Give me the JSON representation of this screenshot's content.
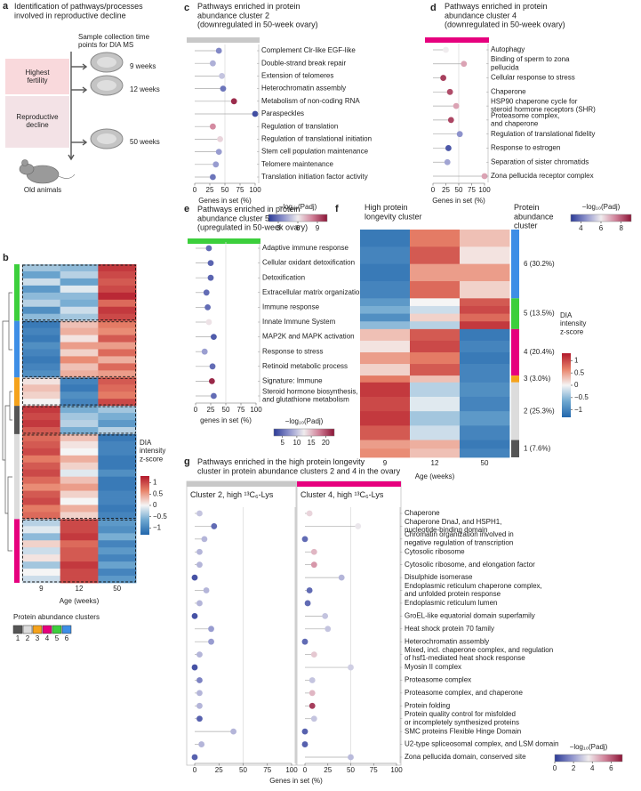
{
  "panel_a": {
    "letter": "a",
    "title": "Identification of pathways/processes\ninvolved in reproductive decline",
    "timepoints_title": "Sample collection time\npoints for DIA MS",
    "phases": [
      "Highest\nfertility",
      "Reproductive\ndecline"
    ],
    "timepoints": [
      "9 weeks",
      "12 weeks",
      "50 weeks"
    ],
    "caption": "Old animals"
  },
  "chart_data": [
    {
      "type": "heatmap",
      "letter": "b",
      "columns": [
        "9",
        "12",
        "50"
      ],
      "xlabel": "Age (weeks)",
      "zlim": [
        -1.3,
        1.3
      ],
      "colorbar": {
        "label": "DIA\nintensity\nz-score",
        "ticks": [
          1,
          0.5,
          0,
          {
            "value": -0.5,
            "label": "−0.5"
          },
          {
            "value": -1,
            "label": "−1"
          }
        ]
      },
      "blocks": [
        {
          "color": "#3ccf3c",
          "rows": [
            [
              -0.4,
              -0.5,
              1.1
            ],
            [
              -0.7,
              -0.3,
              1.0
            ],
            [
              -0.2,
              -0.7,
              0.9
            ],
            [
              -0.8,
              -0.1,
              1.0
            ],
            [
              -0.5,
              -0.5,
              1.2
            ],
            [
              -0.3,
              -0.6,
              0.8
            ],
            [
              -0.9,
              -0.2,
              1.1
            ],
            [
              -0.5,
              -0.4,
              1.0
            ]
          ]
        },
        {
          "color": "#3d8ee6",
          "rows": [
            [
              -1.1,
              0.3,
              0.7
            ],
            [
              -1.0,
              0.4,
              0.6
            ],
            [
              -1.1,
              0.1,
              0.9
            ],
            [
              -0.9,
              0.5,
              0.5
            ],
            [
              -1.0,
              0.2,
              0.8
            ],
            [
              -1.1,
              0.6,
              0.4
            ],
            [
              -1.0,
              0.3,
              0.8
            ],
            [
              -0.9,
              0.4,
              0.5
            ]
          ]
        },
        {
          "color": "#f5a21b",
          "rows": [
            [
              0.1,
              -1.0,
              0.9
            ],
            [
              0.3,
              -1.1,
              0.8
            ],
            [
              0.2,
              -0.9,
              0.7
            ],
            [
              0.0,
              -1.0,
              1.0
            ]
          ]
        },
        {
          "color": "#555555",
          "rows": [
            [
              1.1,
              -0.6,
              -0.4
            ],
            [
              1.0,
              -0.4,
              -0.6
            ],
            [
              1.1,
              -0.3,
              -0.8
            ],
            [
              0.9,
              -0.6,
              -0.3
            ]
          ]
        },
        {
          "color": "#dcdcdc",
          "rows": [
            [
              0.8,
              0.3,
              -1.1
            ],
            [
              0.9,
              0.1,
              -1.0
            ],
            [
              1.0,
              0.0,
              -1.0
            ],
            [
              0.7,
              0.4,
              -1.1
            ],
            [
              0.9,
              0.2,
              -1.1
            ],
            [
              1.0,
              -0.1,
              -0.9
            ],
            [
              0.8,
              0.3,
              -1.1
            ],
            [
              0.6,
              0.5,
              -1.1
            ],
            [
              0.9,
              0.2,
              -1.0
            ],
            [
              1.0,
              0.0,
              -1.0
            ],
            [
              0.7,
              0.4,
              -1.1
            ],
            [
              0.8,
              0.2,
              -1.0
            ]
          ]
        },
        {
          "color": "#e6007e",
          "rows": [
            [
              -0.3,
              1.0,
              -0.8
            ],
            [
              -0.1,
              1.0,
              -0.9
            ],
            [
              -0.5,
              1.1,
              -0.6
            ],
            [
              0.2,
              0.8,
              -1.0
            ],
            [
              -0.2,
              0.9,
              -0.8
            ],
            [
              0.1,
              0.9,
              -1.0
            ],
            [
              -0.4,
              1.1,
              -0.7
            ],
            [
              0.0,
              1.0,
              -1.0
            ],
            [
              -0.2,
              1.0,
              -0.8
            ]
          ]
        }
      ],
      "legend_title": "Protein abundance clusters",
      "legend": [
        {
          "label": "1",
          "color": "#555555"
        },
        {
          "label": "2",
          "color": "#dcdcdc"
        },
        {
          "label": "3",
          "color": "#f5a21b"
        },
        {
          "label": "4",
          "color": "#e6007e"
        },
        {
          "label": "5",
          "color": "#3ccf3c"
        },
        {
          "label": "6",
          "color": "#3d8ee6"
        }
      ]
    },
    {
      "type": "lollipop",
      "letter": "c",
      "title": "Pathways enriched in protein\nabundance cluster 2\n(downregulated in 50-week ovary)",
      "header_color": "#c8c8c8",
      "categories": [
        "Complement Clr-like EGF-like",
        "Double-strand break repair",
        "Extension of telomeres",
        "Heterochromatin assembly",
        "Metabolism of non-coding RNA",
        "Paraspeckles",
        "Regulation of translation",
        "Regulation of translational initiation",
        "Stem cell population maintenance",
        "Telomere maintenance",
        "Translation initiation factor activity"
      ],
      "values": [
        40,
        30,
        45,
        47,
        65,
        100,
        30,
        42,
        40,
        35,
        30
      ],
      "padj": [
        3.5,
        4.5,
        5,
        3,
        10,
        2,
        8,
        6.5,
        4,
        4,
        3
      ],
      "xlim": [
        0,
        100
      ],
      "xticks": [
        0,
        25,
        50,
        75,
        100
      ],
      "refline": 50,
      "xlabel": "Genes in set (%)",
      "colorbar": {
        "label": "−log₁₀(Padj)",
        "lim": [
          1.5,
          10.5
        ],
        "ticks": [
          3,
          6,
          9
        ]
      }
    },
    {
      "type": "lollipop",
      "letter": "d",
      "title": "Pathways enriched in protein\nabundance cluster 4\n(downregulated in 50-week ovary)",
      "header_color": "#e6007e",
      "categories": [
        "Autophagy",
        "Binding of sperm to zona\npellucida",
        "Cellular response to stress",
        "Chaperone",
        "HSP90 chaperone cycle for\nsteroid hormone receptors (SHR)",
        "Proteasome complex,\nand chaperone",
        "Regulation of translational fidelity",
        "Response to estrogen",
        "Separation of sister chromatids",
        "Zona pellucida receptor complex"
      ],
      "values": [
        25,
        60,
        20,
        33,
        45,
        35,
        52,
        30,
        28,
        100
      ],
      "padj": [
        6,
        7,
        8.4,
        8.2,
        7,
        8.3,
        4.5,
        3.5,
        4.8,
        7
      ],
      "xlim": [
        0,
        100
      ],
      "xticks": [
        0,
        25,
        50,
        75,
        100
      ],
      "refline": 50,
      "xlabel": "Genes in set (%)",
      "colorbar": {
        "label": "−log₁₀(Padj)",
        "lim": [
          3,
          9
        ],
        "ticks": [
          4,
          6,
          8
        ]
      }
    },
    {
      "type": "lollipop",
      "letter": "e",
      "title": "Pathways enriched in protein\nabundance cluster 5\n(upregulated in 50-week ovary)",
      "header_color": "#3ccf3c",
      "categories": [
        "Adaptive immune response",
        "Cellular oxidant detoxification",
        "Detoxification",
        "Extracellular matrix organization",
        "Immune response",
        "Innate Immune System",
        "MAP2K and MAPK activation",
        "Response to stress",
        "Retinoid metabolic process",
        "Signature: Immune",
        "Steroid hormone biosynthesis,\nand glutathione metabolism"
      ],
      "values": [
        22,
        25,
        25,
        18,
        20,
        22,
        30,
        15,
        28,
        27,
        30
      ],
      "padj": [
        5,
        4.5,
        4.5,
        5,
        5,
        13,
        4,
        8,
        5,
        22,
        5
      ],
      "xlim": [
        0,
        100
      ],
      "xticks": [
        0,
        25,
        50,
        75,
        100
      ],
      "refline": 50,
      "xlabel": "genes in set (%)",
      "colorbar": {
        "label": "−log₁₀(Padj)",
        "lim": [
          2,
          23
        ],
        "ticks": [
          5,
          10,
          15,
          20
        ]
      }
    },
    {
      "type": "heatmap",
      "letter": "f",
      "title": "High protein\nlongevity cluster",
      "title2": "Protein\nabundance\ncluster",
      "columns": [
        "9",
        "12",
        "50"
      ],
      "xlabel": "Age (weeks)",
      "zlim": [
        -1.3,
        1.3
      ],
      "colorbar": {
        "label": "DIA\nintensity\nz-score",
        "ticks": [
          1,
          0.5,
          0,
          {
            "value": -0.5,
            "label": "−0.5"
          },
          {
            "value": -1,
            "label": "−1"
          }
        ]
      },
      "blocks": [
        {
          "label": "6 (30.2%)",
          "share": 30.2,
          "color": "#3d8ee6",
          "rows": [
            [
              -1.1,
              0.7,
              0.3
            ],
            [
              -1.0,
              0.9,
              0.1
            ],
            [
              -1.1,
              0.5,
              0.5
            ],
            [
              -1.0,
              0.8,
              0.2
            ]
          ]
        },
        {
          "label": "5 (13.5%)",
          "share": 13.5,
          "color": "#3ccf3c",
          "rows": [
            [
              -0.8,
              0.0,
              0.9
            ],
            [
              -0.6,
              -0.2,
              1.0
            ],
            [
              -0.9,
              0.2,
              0.8
            ],
            [
              -0.5,
              -0.3,
              1.1
            ]
          ]
        },
        {
          "label": "4 (20.4%)",
          "share": 20.4,
          "color": "#e6007e",
          "rows": [
            [
              0.3,
              0.9,
              -1.1
            ],
            [
              0.1,
              1.0,
              -1.0
            ],
            [
              0.5,
              0.7,
              -1.1
            ],
            [
              0.2,
              0.9,
              -1.0
            ]
          ]
        },
        {
          "label": "3 (3.0%)",
          "share": 3.0,
          "color": "#f5a21b",
          "rows": [
            [
              0.7,
              0.3,
              -1.0
            ]
          ]
        },
        {
          "label": "2 (25.3%)",
          "share": 25.3,
          "color": "#dcdcdc",
          "rows": [
            [
              1.1,
              -0.3,
              -0.9
            ],
            [
              1.0,
              -0.1,
              -1.0
            ],
            [
              1.1,
              -0.4,
              -0.8
            ],
            [
              0.9,
              -0.2,
              -1.0
            ]
          ]
        },
        {
          "label": "1 (7.6%)",
          "share": 7.6,
          "color": "#555555",
          "rows": [
            [
              0.5,
              0.4,
              -1.1
            ],
            [
              0.6,
              0.3,
              -1.0
            ]
          ]
        }
      ]
    },
    {
      "type": "lollipop",
      "letter": "g",
      "title": "Pathways enriched in the high protein longevity\ncluster in protein abundance clusters 2 and 4 in the ovary",
      "categories": [
        "Chaperone",
        "Chaperone DnaJ, and HSPH1,\nnucleotide-binding domain",
        "Chromatin organization involved in\nnegative regulation of transcription",
        "Cytosolic ribosome",
        "Cytosolic ribosome, and elongation factor",
        "Disulphide isomerase",
        "Endoplasmic reticulum chaperone complex,\nand unfolded protein response",
        "Endoplasmic reticulum lumen",
        "GroEL-like equatorial domain superfamily",
        "Heat shock protein 70 family",
        "Heterochromatin assembly",
        "Mixed, incl. chaperone complex, and regulation\nof hsf1-mediated heat shock response",
        "Myosin II complex",
        "Proteasome complex",
        "Proteasome complex, and chaperone",
        "Protein folding",
        "Protein quality control for misfolded\nor incompletely synthesized proteins",
        "SMC proteins Flexible Hinge Domain",
        "U2-type spliceosomal complex, and LSM domain",
        "Zona pellucida domain, conserved site"
      ],
      "panels": [
        {
          "title": "Cluster 2, high ¹³C₆-Lys",
          "header_color": "#c8c8c8",
          "values": [
            5,
            20,
            10,
            5,
            5,
            0,
            12,
            5,
            0,
            17,
            17,
            5,
            0,
            5,
            5,
            5,
            5,
            40,
            7,
            0
          ],
          "padj": [
            2.8,
            1,
            2.5,
            2.5,
            2.5,
            0.5,
            2.5,
            2.5,
            0.5,
            2,
            2,
            2.5,
            0.5,
            1.5,
            2.5,
            2.5,
            0.8,
            2.5,
            2.5,
            0.8
          ]
        },
        {
          "title": "Cluster 4, high ¹³C₆-Lys",
          "header_color": "#e6007e",
          "values": [
            5,
            58,
            0,
            10,
            10,
            40,
            5,
            3,
            22,
            25,
            0,
            10,
            50,
            8,
            8,
            8,
            10,
            0,
            0,
            50
          ],
          "padj": [
            4,
            3.5,
            1,
            4.5,
            5,
            2.5,
            1,
            1,
            2.8,
            2.8,
            1,
            4.2,
            3,
            2.8,
            4.5,
            6.5,
            2.8,
            0.8,
            0.8,
            2.6
          ]
        }
      ],
      "xlim": [
        0,
        100
      ],
      "xticks": [
        0,
        25,
        50,
        75,
        100
      ],
      "refline": 50,
      "xlabel": "Genes in set (%)",
      "colorbar": {
        "label": "−log₁₀(Padj)",
        "lim": [
          0,
          7.2
        ],
        "ticks": [
          0,
          2,
          4,
          6
        ]
      }
    }
  ]
}
